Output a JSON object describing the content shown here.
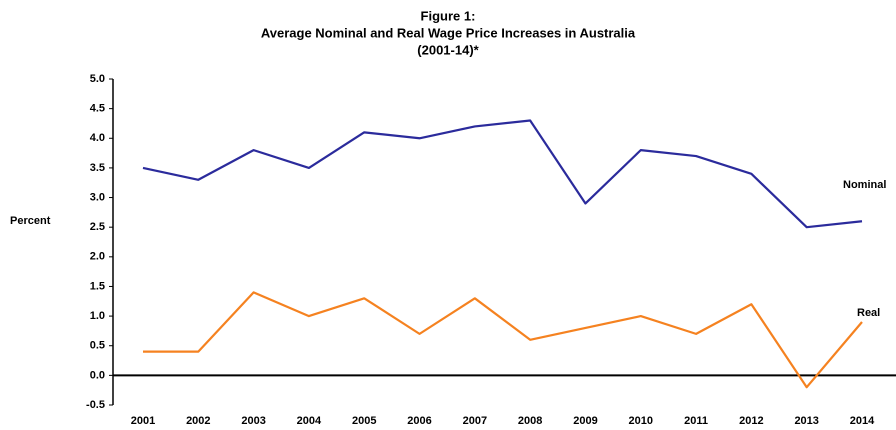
{
  "chart_data": {
    "type": "line",
    "title": [
      "Figure 1:",
      "Average Nominal and Real Wage Price Increases in Australia",
      "(2001-14)*"
    ],
    "y_label": "Percent",
    "categories": [
      "2001",
      "2002",
      "2003",
      "2004",
      "2005",
      "2006",
      "2007",
      "2008",
      "2009",
      "2010",
      "2011",
      "2012",
      "2013",
      "2014"
    ],
    "series": [
      {
        "name": "Nominal",
        "color": "#2b2b9c",
        "values": [
          3.5,
          3.3,
          3.8,
          3.5,
          4.1,
          4.0,
          4.2,
          4.3,
          2.9,
          3.8,
          3.7,
          3.4,
          2.5,
          2.6
        ]
      },
      {
        "name": "Real",
        "color": "#f58220",
        "values": [
          0.4,
          0.4,
          1.4,
          1.0,
          1.3,
          0.7,
          1.3,
          0.6,
          0.8,
          1.0,
          0.7,
          1.2,
          -0.2,
          0.9
        ]
      }
    ],
    "ylim": [
      -0.5,
      5.0
    ],
    "yticks": [
      {
        "value": -0.5,
        "label": "-0.5"
      },
      {
        "value": 0,
        "label": "0.0"
      },
      {
        "value": 0.5,
        "label": "0.5"
      },
      {
        "value": 1,
        "label": "1.0"
      },
      {
        "value": 1.5,
        "label": "1.5"
      },
      {
        "value": 2,
        "label": "2.0"
      },
      {
        "value": 2.5,
        "label": "2.5"
      },
      {
        "value": 3,
        "label": "3.0"
      },
      {
        "value": 3.5,
        "label": "3.5"
      },
      {
        "value": 4,
        "label": "4.0"
      },
      {
        "value": 4.5,
        "label": "4.5"
      },
      {
        "value": 5,
        "label": "5.0"
      }
    ],
    "grid": false
  }
}
